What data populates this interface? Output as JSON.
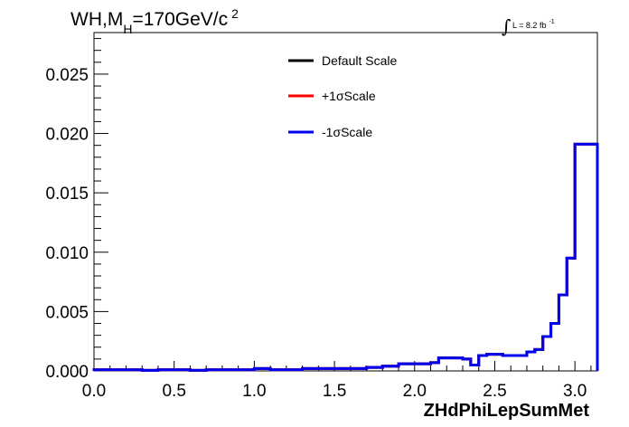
{
  "chart_data": {
    "type": "line",
    "title": "WH,M_H=170GeV/c^2",
    "title_parts": {
      "main": "WH,M",
      "sub": "H",
      "rest": "=170GeV/c",
      "sup": "2"
    },
    "lumi_label": "L = 8.2 fb",
    "lumi_sup": "-1",
    "xlabel": "ZHdPhiLepSumMet",
    "ylabel": "",
    "xlim": [
      0.0,
      3.14
    ],
    "ylim": [
      0.0,
      0.0285
    ],
    "x_ticks": [
      0.0,
      0.5,
      1.0,
      1.5,
      2.0,
      2.5,
      3.0
    ],
    "x_tick_labels": [
      "0.0",
      "0.5",
      "1.0",
      "1.5",
      "2.0",
      "2.5",
      "3.0"
    ],
    "y_ticks": [
      0.0,
      0.005,
      0.01,
      0.015,
      0.02,
      0.025
    ],
    "y_tick_labels": [
      "0.000",
      "0.005",
      "0.010",
      "0.015",
      "0.020",
      "0.025"
    ],
    "grid": false,
    "legend_position": "top-center",
    "bin_edges": [
      0.0,
      0.1,
      0.2,
      0.3,
      0.4,
      0.5,
      0.6,
      0.7,
      0.8,
      0.9,
      1.0,
      1.1,
      1.2,
      1.3,
      1.4,
      1.5,
      1.6,
      1.7,
      1.8,
      1.9,
      2.0,
      2.1,
      2.15,
      2.3,
      2.35,
      2.4,
      2.45,
      2.5,
      2.55,
      2.6,
      2.65,
      2.7,
      2.75,
      2.8,
      2.85,
      2.9,
      2.95,
      3.0,
      3.05,
      3.14
    ],
    "series": [
      {
        "name": "Default Scale",
        "color": "#000000",
        "values": [
          0.0001,
          0.0001,
          0.0001,
          5e-05,
          0.0001,
          0.0001,
          5e-05,
          0.0001,
          0.0001,
          0.0001,
          0.0002,
          0.0001,
          0.0001,
          0.0002,
          0.0002,
          0.0002,
          0.0002,
          0.0003,
          0.0004,
          0.0006,
          0.0006,
          0.0007,
          0.0011,
          0.001,
          0.0005,
          0.0013,
          0.0014,
          0.0014,
          0.0013,
          0.0013,
          0.0013,
          0.0016,
          0.0018,
          0.0029,
          0.004,
          0.0064,
          0.0095,
          0.0191,
          0.0191
        ]
      },
      {
        "name": "+1σScale",
        "color": "#ff0000",
        "values": [
          0.0001,
          0.0001,
          0.0001,
          5e-05,
          0.0001,
          0.0001,
          5e-05,
          0.0001,
          0.0001,
          0.0001,
          0.0002,
          0.0001,
          0.0001,
          0.0002,
          0.0002,
          0.0002,
          0.0002,
          0.0003,
          0.0004,
          0.0006,
          0.0006,
          0.0007,
          0.0011,
          0.001,
          0.0005,
          0.0013,
          0.0014,
          0.0014,
          0.0013,
          0.0013,
          0.0013,
          0.0016,
          0.0018,
          0.0029,
          0.004,
          0.0064,
          0.0095,
          0.0191,
          0.0191
        ]
      },
      {
        "name": "-1σScale",
        "color": "#0000ee",
        "values": [
          0.0001,
          0.0001,
          0.0001,
          5e-05,
          0.0001,
          0.0001,
          5e-05,
          0.0001,
          0.0001,
          0.0001,
          0.0002,
          0.0001,
          0.0001,
          0.0002,
          0.0002,
          0.0002,
          0.0002,
          0.0003,
          0.0004,
          0.0006,
          0.0006,
          0.0007,
          0.0011,
          0.001,
          0.0005,
          0.0013,
          0.0014,
          0.0014,
          0.0013,
          0.0013,
          0.0013,
          0.0016,
          0.0018,
          0.0029,
          0.004,
          0.0064,
          0.0095,
          0.0191,
          0.0191
        ]
      }
    ]
  }
}
